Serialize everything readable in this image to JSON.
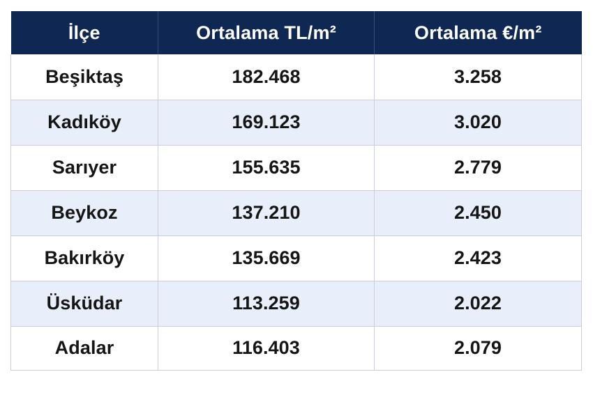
{
  "table": {
    "headers": [
      "İlçe",
      "Ortalama TL/m²",
      "Ortalama €/m²"
    ],
    "rows": [
      [
        "Beşiktaş",
        "182.468",
        "3.258"
      ],
      [
        "Kadıköy",
        "169.123",
        "3.020"
      ],
      [
        "Sarıyer",
        "155.635",
        "2.779"
      ],
      [
        "Beykoz",
        "137.210",
        "2.450"
      ],
      [
        "Bakırköy",
        "135.669",
        "2.423"
      ],
      [
        "Üsküdar",
        "113.259",
        "2.022"
      ],
      [
        "Adalar",
        "116.403",
        "2.079"
      ]
    ]
  },
  "colors": {
    "header_bg": "#0f2753",
    "header_text": "#ffffff",
    "row_alt_bg": "#e9effa",
    "row_bg": "#ffffff",
    "border": "#c9ced8"
  }
}
